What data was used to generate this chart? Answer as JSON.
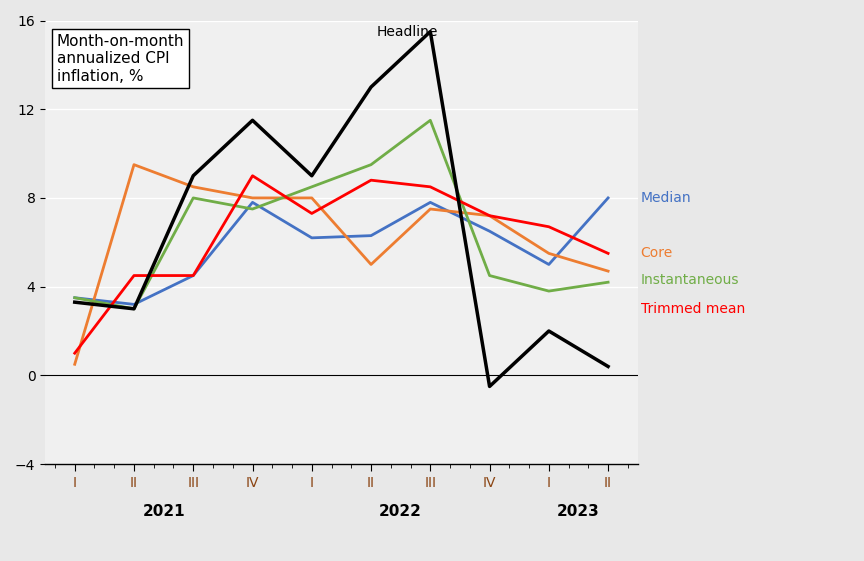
{
  "ylabel_box": "Month-on-month\nannualized CPI\ninflation, %",
  "ylim": [
    -4,
    16
  ],
  "yticks": [
    -4,
    0,
    4,
    8,
    12,
    16
  ],
  "background_color": "#e8e8e8",
  "plot_bg_color": "#f0f0f0",
  "quarters": [
    "2021-I",
    "2021-II",
    "2021-III",
    "2021-IV",
    "2022-I",
    "2022-II",
    "2022-III",
    "2022-IV",
    "2023-I",
    "2023-II"
  ],
  "headline": [
    3.3,
    3.0,
    9.0,
    11.5,
    9.0,
    13.0,
    15.5,
    -0.5,
    2.0,
    0.4
  ],
  "median": [
    3.5,
    3.2,
    4.5,
    7.8,
    6.2,
    6.3,
    7.8,
    6.5,
    5.0,
    8.0
  ],
  "core": [
    0.5,
    9.5,
    8.5,
    8.0,
    8.0,
    5.0,
    7.5,
    7.2,
    5.5,
    4.7
  ],
  "instantaneous": [
    3.5,
    3.0,
    8.0,
    7.5,
    8.5,
    9.5,
    11.5,
    4.5,
    3.8,
    4.2
  ],
  "trimmed_mean": [
    1.0,
    4.5,
    4.5,
    9.0,
    7.3,
    8.8,
    8.5,
    7.2,
    6.7,
    5.5
  ],
  "headline_color": "#000000",
  "median_color": "#4472c4",
  "core_color": "#ed7d31",
  "instantaneous_color": "#70ad47",
  "trimmed_mean_color": "#ff0000",
  "linewidth": 2.0
}
